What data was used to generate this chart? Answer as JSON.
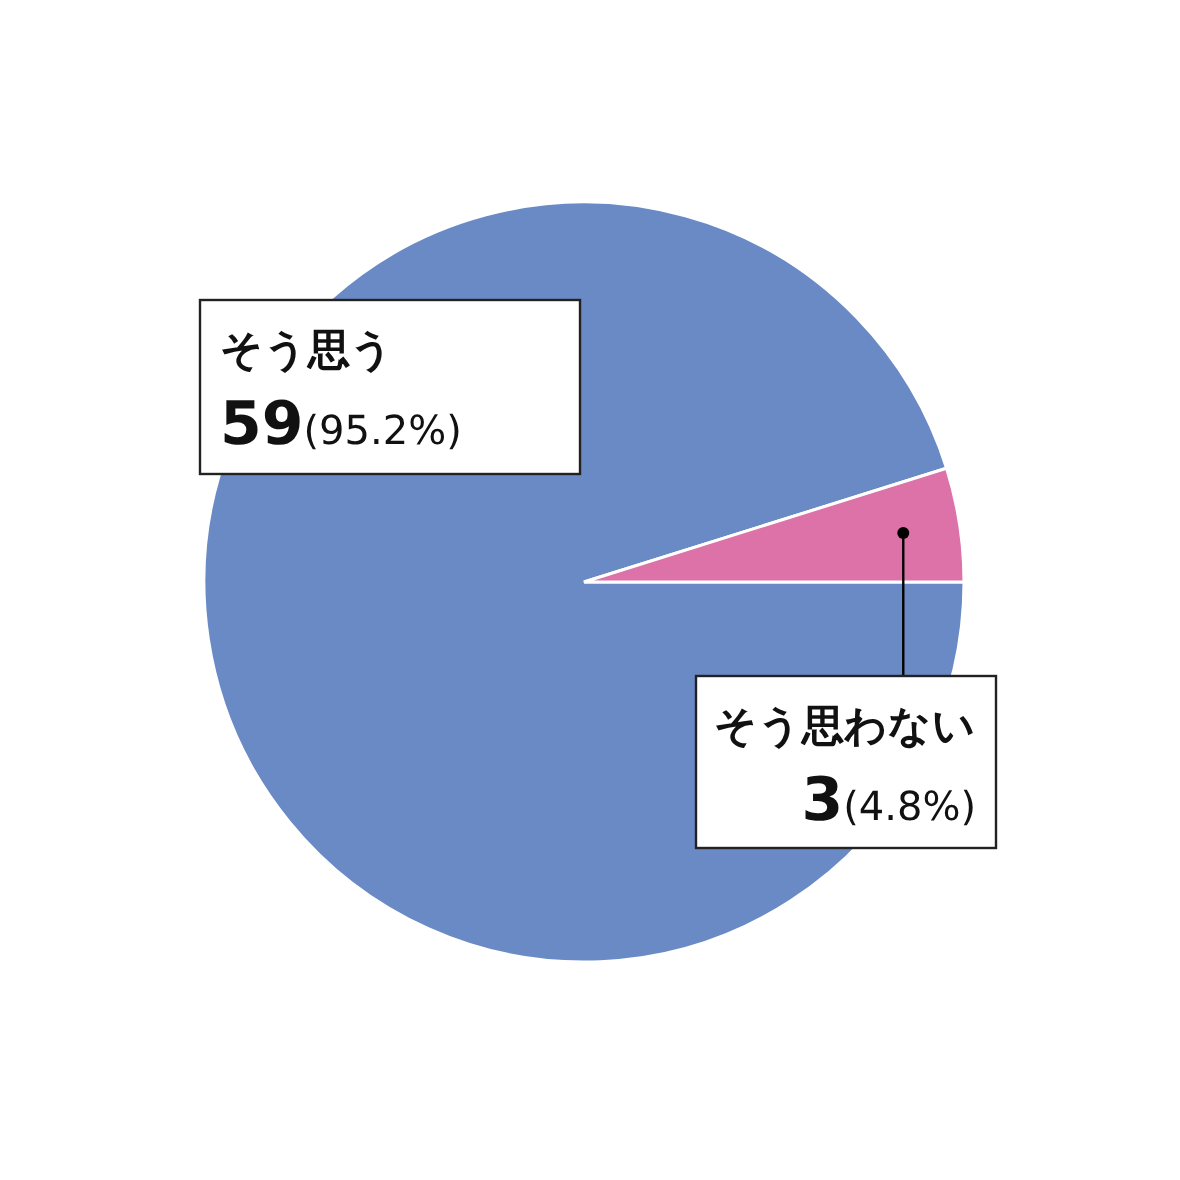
{
  "chart_data": {
    "type": "pie",
    "categories": [
      "そう思う",
      "そう思わない"
    ],
    "values": [
      59,
      3
    ],
    "colors": [
      "#6a8ac6",
      "#dc72a8"
    ],
    "value_labels": [
      "59(95.2%)",
      "3(4.8%)"
    ]
  }
}
